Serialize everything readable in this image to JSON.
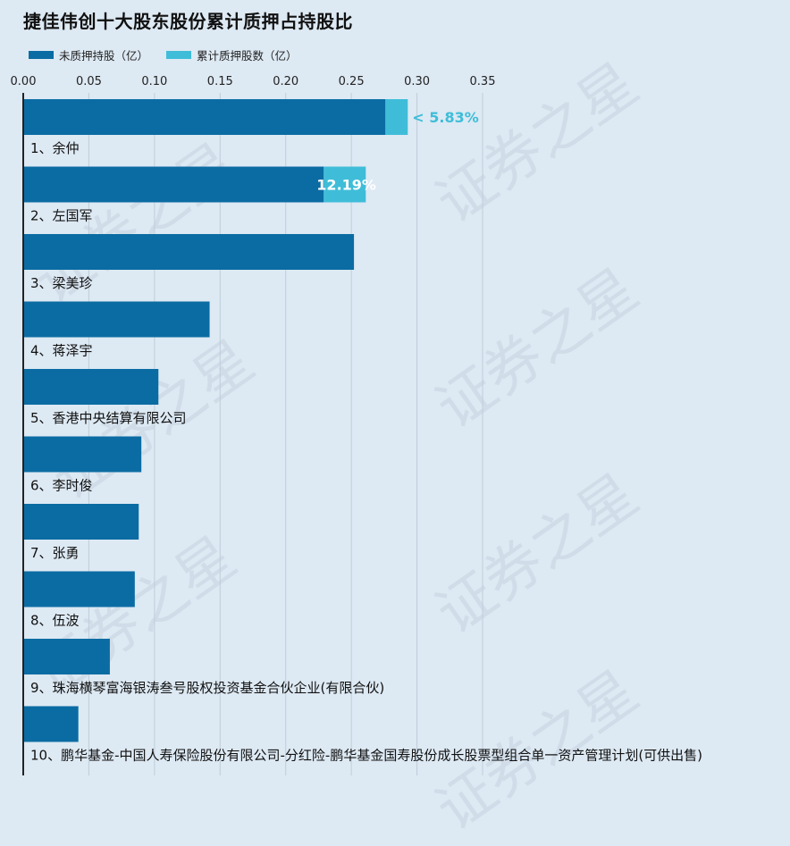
{
  "title": "捷佳伟创十大股东股份累计质押占持股比",
  "legend": {
    "unpledged_label": "未质押持股（亿）",
    "pledged_label": "累计质押股数（亿）"
  },
  "colors": {
    "unpledged": "#0b6ca3",
    "pledged": "#3fbdd8",
    "pct_outside": "#3fbdd8",
    "pct_inside": "#ffffff",
    "grid": "#bfcedb",
    "axis": "#222222"
  },
  "watermark_text": "证券之星",
  "chart_data": {
    "type": "bar",
    "orientation": "horizontal",
    "stacked": true,
    "xlim": [
      0,
      0.35
    ],
    "x_ticks": [
      "0.00",
      "0.05",
      "0.10",
      "0.15",
      "0.20",
      "0.25",
      "0.30",
      "0.35"
    ],
    "grid": true,
    "categories": [
      "1、余仲",
      "2、左国军",
      "3、梁美珍",
      "4、蒋泽宇",
      "5、香港中央结算有限公司",
      "6、李时俊",
      "7、张勇",
      "8、伍波",
      "9、珠海横琴富海银涛叁号股权投资基金合伙企业(有限合伙)",
      "10、鹏华基金-中国人寿保险股份有限公司-分红险-鹏华基金国寿股份成长股票型组合单一资产管理计划(可供出售)"
    ],
    "series": [
      {
        "name": "未质押持股（亿）",
        "values": [
          0.276,
          0.229,
          0.252,
          0.142,
          0.103,
          0.09,
          0.088,
          0.085,
          0.066,
          0.042
        ]
      },
      {
        "name": "累计质押股数（亿）",
        "values": [
          0.017,
          0.032,
          0,
          0,
          0,
          0,
          0,
          0,
          0,
          0
        ]
      }
    ],
    "pledge_pct_labels": [
      "5.83%",
      "12.19%",
      "",
      "",
      "",
      "",
      "",
      "",
      "",
      ""
    ]
  }
}
